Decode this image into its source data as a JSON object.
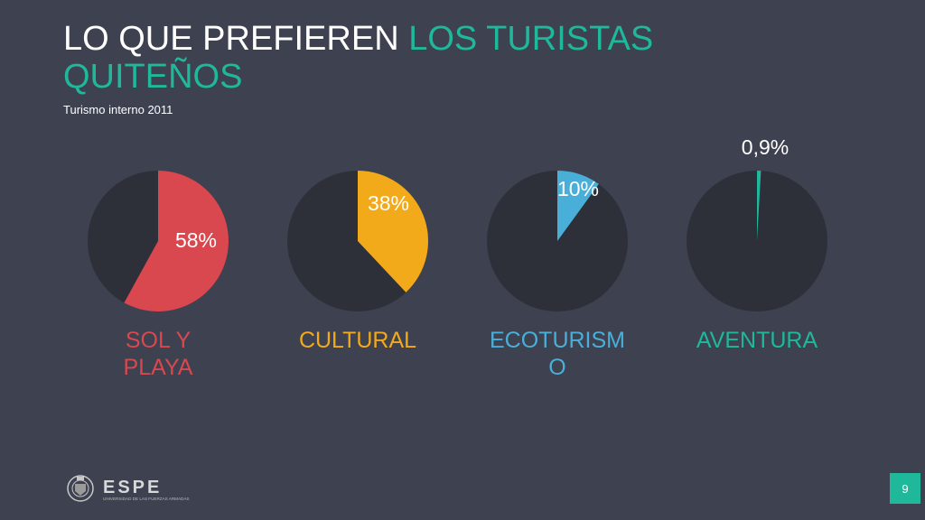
{
  "slide": {
    "title_part1": "LO QUE PREFIEREN ",
    "title_part2": "LOS TURISTAS QUITEÑOS",
    "subtitle": "Turismo interno 2011",
    "page_number": "9",
    "logo_text": "ESPE",
    "logo_subtext": "UNIVERSIDAD DE LAS FUERZAS ARMADAS"
  },
  "colors": {
    "background": "#3d4150",
    "pie_base": "#2e3039",
    "accent_teal": "#1fb89a",
    "sol_y_playa": "#d9474f",
    "cultural": "#f2aa1b",
    "ecoturismo": "#4aafd8",
    "aventura": "#1fb89a"
  },
  "chart_data": {
    "type": "pie",
    "title": "",
    "charts": [
      {
        "category": "SOL Y PLAYA",
        "category_lines": [
          "SOL Y",
          "PLAYA"
        ],
        "value": 58,
        "label": "58%",
        "color": "#d9474f"
      },
      {
        "category": "CULTURAL",
        "category_lines": [
          "CULTURAL"
        ],
        "value": 38,
        "label": "38%",
        "color": "#f2aa1b"
      },
      {
        "category": "ECOTURISMO",
        "category_lines": [
          "ECOTURISM",
          "O"
        ],
        "value": 10,
        "label": "10%",
        "color": "#4aafd8"
      },
      {
        "category": "AVENTURA",
        "category_lines": [
          "AVENTURA"
        ],
        "value": 0.9,
        "label": "0,9%",
        "color": "#1fb89a"
      }
    ]
  }
}
